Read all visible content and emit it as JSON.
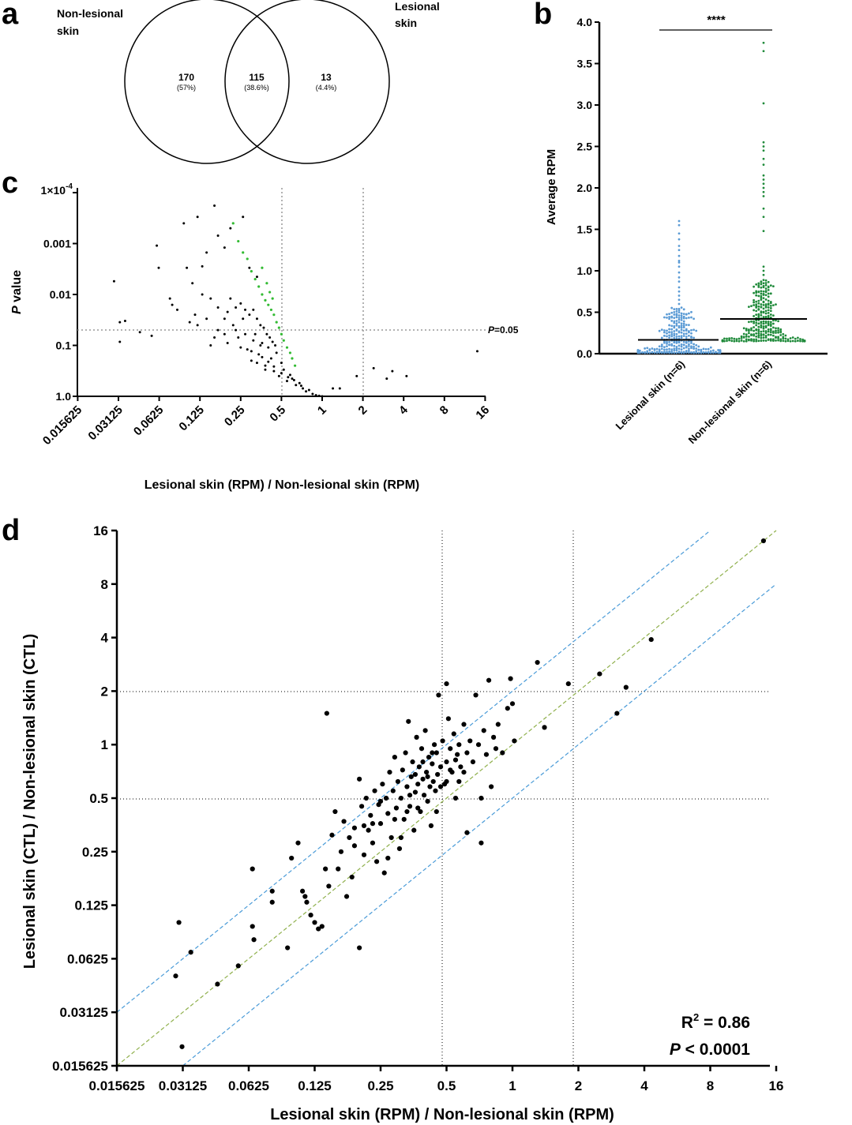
{
  "colors": {
    "black": "#000000",
    "lesional_blue": "#5b9bd5",
    "nonlesional_green": "#1f8a3a",
    "sig_green": "#33bb33",
    "ref_grey": "#999999",
    "band_blue": "#4a9bd8",
    "identity_green": "#8fb04c"
  },
  "panels": {
    "a": "a",
    "b": "b",
    "c": "c",
    "d": "d"
  },
  "chart_data": [
    {
      "panel": "a",
      "type": "venn",
      "sets": [
        {
          "label_line1": "Non-lesional",
          "label_line2": "skin"
        },
        {
          "label_line1": "Lesional",
          "label_line2": "skin"
        }
      ],
      "regions": [
        {
          "count": "170",
          "percent": "(57%)"
        },
        {
          "count": "115",
          "percent": "(38.6%)"
        },
        {
          "count": "13",
          "percent": "(4.4%)"
        }
      ]
    },
    {
      "panel": "b",
      "type": "scatter",
      "ylabel": "Average RPM",
      "ylim": [
        0,
        4.0
      ],
      "yticks": [
        "0.0",
        "0.5",
        "1.0",
        "1.5",
        "2.0",
        "2.5",
        "3.0",
        "3.5",
        "4.0"
      ],
      "significance": "****",
      "groups": [
        {
          "name": "Lesional skin (n=6)",
          "mean": 0.17,
          "n_points": 298,
          "max": 1.6,
          "high_values": [
            1.6,
            1.55,
            1.45,
            1.38,
            1.3,
            1.25,
            1.18,
            1.12,
            1.1,
            1.05,
            0.98,
            0.92,
            0.87,
            0.8,
            0.75,
            0.7,
            0.65,
            0.6
          ]
        },
        {
          "name": "Non-lesional skin (n=6)",
          "mean": 0.42,
          "n_points": 298,
          "max": 3.75,
          "high_values": [
            3.75,
            3.65,
            3.02,
            2.55,
            2.5,
            2.45,
            2.35,
            2.28,
            2.15,
            2.1,
            2.05,
            2.0,
            1.95,
            1.9,
            1.75,
            1.65,
            1.48,
            1.05,
            1.0,
            0.95
          ]
        }
      ]
    },
    {
      "panel": "c",
      "type": "scatter",
      "xlabel": "Lesional skin (RPM) / Non-lesional skin (RPM)",
      "ylabel_italic": "P",
      "ylabel_rest": " value",
      "x_scale": "log2",
      "y_scale": "log10, reversed",
      "xticks": [
        "0.015625",
        "0.03125",
        "0.0625",
        "0.125",
        "0.25",
        "0.5",
        "1",
        "2",
        "4",
        "8",
        "16"
      ],
      "ytick_top_base": "1×10",
      "ytick_top_exp": "-4",
      "yticks": [
        "0.001",
        "0.01",
        "0.1",
        "1.0"
      ],
      "reference_lines": {
        "x": [
          0.5,
          2
        ],
        "y": 0.05
      },
      "threshold_label_italic": "P",
      "threshold_label_rest": "=0.05",
      "points_black": [
        [
          0.029,
          0.0055
        ],
        [
          0.032,
          0.035
        ],
        [
          0.035,
          0.033
        ],
        [
          0.032,
          0.085
        ],
        [
          0.045,
          0.055
        ],
        [
          0.055,
          0.065
        ],
        [
          0.06,
          0.0011
        ],
        [
          0.062,
          0.003
        ],
        [
          0.075,
          0.012
        ],
        [
          0.078,
          0.016
        ],
        [
          0.085,
          0.02
        ],
        [
          0.095,
          0.0004
        ],
        [
          0.1,
          0.003
        ],
        [
          0.11,
          0.006
        ],
        [
          0.12,
          0.0003
        ],
        [
          0.13,
          0.0028
        ],
        [
          0.14,
          0.0015
        ],
        [
          0.16,
          0.00018
        ],
        [
          0.17,
          0.0007
        ],
        [
          0.19,
          0.0012
        ],
        [
          0.21,
          0.0005
        ],
        [
          0.26,
          0.0003
        ],
        [
          0.29,
          0.003
        ],
        [
          0.33,
          0.0045
        ],
        [
          0.12,
          0.04
        ],
        [
          0.14,
          0.03
        ],
        [
          0.15,
          0.1
        ],
        [
          0.17,
          0.05
        ],
        [
          0.19,
          0.06
        ],
        [
          0.2,
          0.022
        ],
        [
          0.22,
          0.04
        ],
        [
          0.24,
          0.07
        ],
        [
          0.26,
          0.03
        ],
        [
          0.28,
          0.12
        ],
        [
          0.3,
          0.2
        ],
        [
          0.32,
          0.06
        ],
        [
          0.34,
          0.15
        ],
        [
          0.36,
          0.09
        ],
        [
          0.38,
          0.25
        ],
        [
          0.4,
          0.11
        ],
        [
          0.42,
          0.18
        ],
        [
          0.44,
          0.32
        ],
        [
          0.46,
          0.14
        ],
        [
          0.48,
          0.4
        ],
        [
          0.5,
          0.22
        ],
        [
          0.52,
          0.3
        ],
        [
          0.55,
          0.5
        ],
        [
          0.58,
          0.38
        ],
        [
          0.6,
          0.45
        ],
        [
          0.64,
          0.6
        ],
        [
          0.68,
          0.55
        ],
        [
          0.72,
          0.7
        ],
        [
          0.76,
          0.8
        ],
        [
          0.8,
          0.75
        ],
        [
          0.85,
          0.9
        ],
        [
          0.9,
          0.95
        ],
        [
          0.95,
          0.98
        ],
        [
          1.0,
          1.0
        ],
        [
          1.2,
          0.7
        ],
        [
          1.35,
          0.7
        ],
        [
          1.8,
          0.4
        ],
        [
          2.4,
          0.28
        ],
        [
          3.0,
          0.45
        ],
        [
          3.3,
          0.32
        ],
        [
          4.2,
          0.4
        ],
        [
          14.0,
          0.13
        ],
        [
          0.21,
          0.012
        ],
        [
          0.23,
          0.018
        ],
        [
          0.25,
          0.015
        ],
        [
          0.27,
          0.02
        ],
        [
          0.29,
          0.025
        ],
        [
          0.31,
          0.02
        ],
        [
          0.33,
          0.03
        ],
        [
          0.35,
          0.04
        ],
        [
          0.37,
          0.045
        ],
        [
          0.39,
          0.06
        ],
        [
          0.41,
          0.07
        ],
        [
          0.43,
          0.085
        ],
        [
          0.45,
          0.1
        ],
        [
          0.35,
          0.1
        ],
        [
          0.31,
          0.08
        ],
        [
          0.27,
          0.06
        ],
        [
          0.23,
          0.05
        ],
        [
          0.19,
          0.03
        ],
        [
          0.17,
          0.018
        ],
        [
          0.15,
          0.012
        ],
        [
          0.13,
          0.01
        ],
        [
          0.115,
          0.025
        ],
        [
          0.105,
          0.035
        ],
        [
          0.16,
          0.07
        ],
        [
          0.2,
          0.09
        ],
        [
          0.25,
          0.11
        ],
        [
          0.3,
          0.13
        ],
        [
          0.36,
          0.17
        ],
        [
          0.4,
          0.21
        ],
        [
          0.44,
          0.26
        ],
        [
          0.5,
          0.35
        ],
        [
          0.56,
          0.42
        ],
        [
          0.62,
          0.48
        ],
        [
          0.7,
          0.62
        ],
        [
          0.33,
          0.22
        ],
        [
          0.38,
          0.3
        ]
      ],
      "points_green": [
        [
          0.22,
          0.0004
        ],
        [
          0.24,
          0.0009
        ],
        [
          0.26,
          0.0015
        ],
        [
          0.28,
          0.002
        ],
        [
          0.3,
          0.0035
        ],
        [
          0.32,
          0.005
        ],
        [
          0.34,
          0.007
        ],
        [
          0.36,
          0.01
        ],
        [
          0.38,
          0.013
        ],
        [
          0.4,
          0.016
        ],
        [
          0.42,
          0.02
        ],
        [
          0.44,
          0.025
        ],
        [
          0.46,
          0.035
        ],
        [
          0.48,
          0.045
        ],
        [
          0.5,
          0.06
        ],
        [
          0.52,
          0.08
        ],
        [
          0.55,
          0.11
        ],
        [
          0.58,
          0.14
        ],
        [
          0.6,
          0.18
        ],
        [
          0.63,
          0.25
        ],
        [
          0.36,
          0.003
        ],
        [
          0.39,
          0.006
        ],
        [
          0.41,
          0.009
        ],
        [
          0.43,
          0.012
        ]
      ]
    },
    {
      "panel": "d",
      "type": "scatter",
      "xlabel": "Lesional skin (RPM) / Non-lesional skin (RPM)",
      "ylabel": "Lesional skin (CTL) / Non-lesional skin (CTL)",
      "x_scale": "log2",
      "y_scale": "log2",
      "xticks": [
        "0.015625",
        "0.03125",
        "0.0625",
        "0.125",
        "0.25",
        "0.5",
        "1",
        "2",
        "4",
        "8",
        "16"
      ],
      "yticks": [
        "0.015625",
        "0.03125",
        "0.0625",
        "0.125",
        "0.25",
        "0.5",
        "1",
        "2",
        "4",
        "8",
        "16"
      ],
      "reference_lines": {
        "x": [
          0.5,
          2
        ],
        "y": [
          0.5,
          2
        ]
      },
      "fit_lines": [
        "identity",
        "+2-fold",
        "-2-fold"
      ],
      "r2_label": "R",
      "r2_exp": "2",
      "r2_value": " = 0.86",
      "p_label_italic": "P",
      "p_value": " < 0.0001",
      "points": [
        [
          0.03,
          0.1
        ],
        [
          0.034,
          0.068
        ],
        [
          0.029,
          0.05
        ],
        [
          0.031,
          0.02
        ],
        [
          0.045,
          0.045
        ],
        [
          0.056,
          0.057
        ],
        [
          0.065,
          0.2
        ],
        [
          0.065,
          0.095
        ],
        [
          0.066,
          0.08
        ],
        [
          0.08,
          0.15
        ],
        [
          0.08,
          0.13
        ],
        [
          0.094,
          0.072
        ],
        [
          0.098,
          0.23
        ],
        [
          0.105,
          0.28
        ],
        [
          0.11,
          0.15
        ],
        [
          0.113,
          0.14
        ],
        [
          0.115,
          0.13
        ],
        [
          0.12,
          0.11
        ],
        [
          0.125,
          0.1
        ],
        [
          0.13,
          0.092
        ],
        [
          0.135,
          0.095
        ],
        [
          0.14,
          0.2
        ],
        [
          0.142,
          1.5
        ],
        [
          0.145,
          0.16
        ],
        [
          0.15,
          0.31
        ],
        [
          0.155,
          0.42
        ],
        [
          0.16,
          0.2
        ],
        [
          0.165,
          0.25
        ],
        [
          0.17,
          0.37
        ],
        [
          0.175,
          0.14
        ],
        [
          0.18,
          0.3
        ],
        [
          0.185,
          0.18
        ],
        [
          0.19,
          0.34
        ],
        [
          0.2,
          0.64
        ],
        [
          0.2,
          0.072
        ],
        [
          0.205,
          0.45
        ],
        [
          0.21,
          0.24
        ],
        [
          0.215,
          0.5
        ],
        [
          0.22,
          0.33
        ],
        [
          0.225,
          0.4
        ],
        [
          0.23,
          0.28
        ],
        [
          0.235,
          0.55
        ],
        [
          0.24,
          0.22
        ],
        [
          0.245,
          0.46
        ],
        [
          0.25,
          0.36
        ],
        [
          0.255,
          0.6
        ],
        [
          0.26,
          0.19
        ],
        [
          0.265,
          0.5
        ],
        [
          0.27,
          0.41
        ],
        [
          0.275,
          0.7
        ],
        [
          0.28,
          0.3
        ],
        [
          0.285,
          0.55
        ],
        [
          0.29,
          0.85
        ],
        [
          0.295,
          0.44
        ],
        [
          0.3,
          0.62
        ],
        [
          0.305,
          0.26
        ],
        [
          0.31,
          0.5
        ],
        [
          0.315,
          0.72
        ],
        [
          0.32,
          0.38
        ],
        [
          0.325,
          0.9
        ],
        [
          0.33,
          0.58
        ],
        [
          0.335,
          1.35
        ],
        [
          0.34,
          0.45
        ],
        [
          0.345,
          0.66
        ],
        [
          0.35,
          0.8
        ],
        [
          0.355,
          0.33
        ],
        [
          0.36,
          0.54
        ],
        [
          0.365,
          1.1
        ],
        [
          0.37,
          0.6
        ],
        [
          0.375,
          0.75
        ],
        [
          0.38,
          0.42
        ],
        [
          0.385,
          0.95
        ],
        [
          0.39,
          0.64
        ],
        [
          0.395,
          0.52
        ],
        [
          0.4,
          1.2
        ],
        [
          0.405,
          0.7
        ],
        [
          0.41,
          0.48
        ],
        [
          0.415,
          0.85
        ],
        [
          0.42,
          0.58
        ],
        [
          0.425,
          0.35
        ],
        [
          0.43,
          0.78
        ],
        [
          0.435,
          0.62
        ],
        [
          0.44,
          1.0
        ],
        [
          0.445,
          0.55
        ],
        [
          0.45,
          0.9
        ],
        [
          0.455,
          0.68
        ],
        [
          0.46,
          1.9
        ],
        [
          0.47,
          0.75
        ],
        [
          0.48,
          1.05
        ],
        [
          0.49,
          0.6
        ],
        [
          0.5,
          2.2
        ],
        [
          0.5,
          0.8
        ],
        [
          0.51,
          1.4
        ],
        [
          0.52,
          0.95
        ],
        [
          0.53,
          0.7
        ],
        [
          0.54,
          1.15
        ],
        [
          0.55,
          0.5
        ],
        [
          0.56,
          0.88
        ],
        [
          0.57,
          1.0
        ],
        [
          0.58,
          0.75
        ],
        [
          0.6,
          1.3
        ],
        [
          0.62,
          0.32
        ],
        [
          0.62,
          0.9
        ],
        [
          0.64,
          1.05
        ],
        [
          0.66,
          0.8
        ],
        [
          0.68,
          1.9
        ],
        [
          0.7,
          1.0
        ],
        [
          0.72,
          0.5
        ],
        [
          0.72,
          0.28
        ],
        [
          0.74,
          1.2
        ],
        [
          0.76,
          0.88
        ],
        [
          0.78,
          2.3
        ],
        [
          0.8,
          0.58
        ],
        [
          0.82,
          1.1
        ],
        [
          0.84,
          0.95
        ],
        [
          0.86,
          1.3
        ],
        [
          0.9,
          0.9
        ],
        [
          0.95,
          1.6
        ],
        [
          0.98,
          2.35
        ],
        [
          1.0,
          1.7
        ],
        [
          1.02,
          1.05
        ],
        [
          1.3,
          2.9
        ],
        [
          1.4,
          1.25
        ],
        [
          1.8,
          2.2
        ],
        [
          2.5,
          2.5
        ],
        [
          3.0,
          1.5
        ],
        [
          3.3,
          2.1
        ],
        [
          4.3,
          3.9
        ],
        [
          14.0,
          14.0
        ],
        [
          0.23,
          0.36
        ],
        [
          0.27,
          0.23
        ],
        [
          0.31,
          0.3
        ],
        [
          0.34,
          0.52
        ],
        [
          0.37,
          0.44
        ],
        [
          0.41,
          0.66
        ],
        [
          0.45,
          0.42
        ],
        [
          0.5,
          0.62
        ],
        [
          0.55,
          0.82
        ],
        [
          0.19,
          0.27
        ],
        [
          0.21,
          0.35
        ],
        [
          0.25,
          0.48
        ],
        [
          0.29,
          0.38
        ],
        [
          0.33,
          0.42
        ],
        [
          0.36,
          0.68
        ],
        [
          0.39,
          0.8
        ],
        [
          0.43,
          0.9
        ],
        [
          0.47,
          0.58
        ],
        [
          0.52,
          0.72
        ],
        [
          0.57,
          0.62
        ],
        [
          0.6,
          0.7
        ]
      ]
    }
  ]
}
